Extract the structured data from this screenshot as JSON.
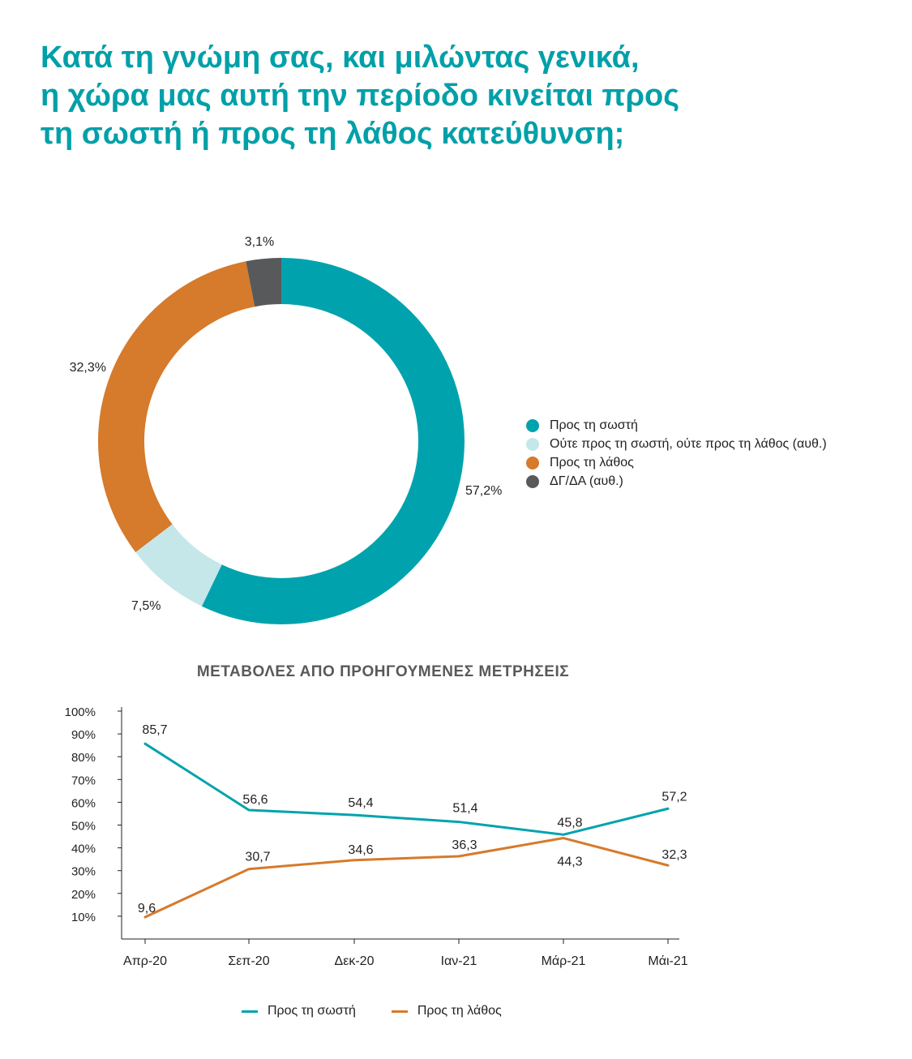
{
  "title_lines": [
    "Κατά τη γνώμη σας, και μιλώντας γενικά,",
    "η χώρα μας αυτή την περίοδο κινείται προς",
    "τη σωστή ή προς τη λάθος κατεύθυνση;"
  ],
  "colors": {
    "title": "#00a0a8",
    "teal": "#00a3ad",
    "light_teal": "#c5e7e9",
    "orange": "#d67a2b",
    "dark_gray": "#58595b",
    "axis": "#231f20",
    "subtitle": "#58595b"
  },
  "chart_data": [
    {
      "type": "pie",
      "variant": "donut",
      "slices": [
        {
          "name": "Προς τη σωστή",
          "value": 57.2,
          "label": "57,2%",
          "color": "#00a3ad"
        },
        {
          "name": "Ούτε προς τη σωστή, ούτε προς τη λάθος (αυθ.)",
          "value": 7.5,
          "label": "7,5%",
          "color": "#c5e7e9"
        },
        {
          "name": "Προς τη λάθος",
          "value": 32.3,
          "label": "32,3%",
          "color": "#d67a2b"
        },
        {
          "name": "ΔΓ/ΔΑ (αυθ.)",
          "value": 3.1,
          "label": "3,1%",
          "color": "#58595b"
        }
      ],
      "legend_position": "right"
    },
    {
      "type": "line",
      "title": "ΜΕΤΑΒΟΛΕΣ ΑΠΟ ΠΡΟΗΓΟΥΜΕΝΕΣ ΜΕΤΡΗΣΕΙΣ",
      "categories": [
        "Απρ-20",
        "Σεπ-20",
        "Δεκ-20",
        "Ιαν-21",
        "Μάρ-21",
        "Μάι-21"
      ],
      "series": [
        {
          "name": "Προς τη σωστή",
          "color": "#00a3ad",
          "values": [
            85.7,
            56.6,
            54.4,
            51.4,
            45.8,
            57.2
          ],
          "labels": [
            "85,7",
            "56,6",
            "54,4",
            "51,4",
            "45,8",
            "57,2"
          ]
        },
        {
          "name": "Προς τη λάθος",
          "color": "#d67a2b",
          "values": [
            9.6,
            30.7,
            34.6,
            36.3,
            44.3,
            32.3
          ],
          "labels": [
            "9,6",
            "30,7",
            "34,6",
            "36,3",
            "44,3",
            "32,3"
          ]
        }
      ],
      "y_ticks": [
        10,
        20,
        30,
        40,
        50,
        60,
        70,
        80,
        90,
        100
      ],
      "y_tick_labels": [
        "10%",
        "20%",
        "30%",
        "40%",
        "50%",
        "60%",
        "70%",
        "80%",
        "90%",
        "100%"
      ],
      "ylim": [
        0,
        100
      ],
      "grid": false,
      "legend_position": "bottom"
    }
  ]
}
